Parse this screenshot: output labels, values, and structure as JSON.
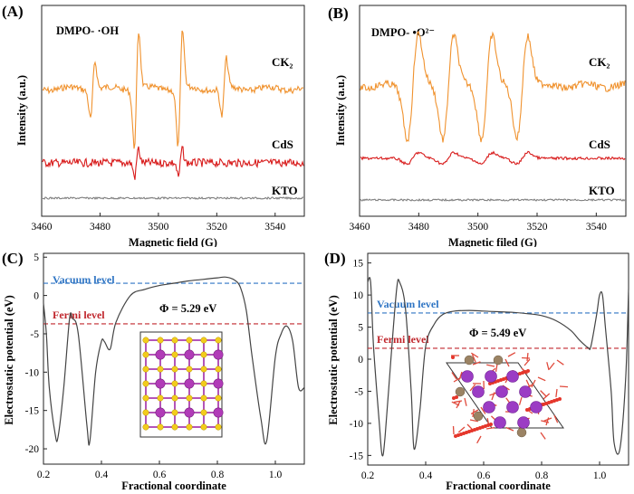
{
  "figure": {
    "panels": [
      {
        "id": "A",
        "label": "(A)",
        "annotation": "DMPO- ·OH",
        "xlabel": "Magnetic field (G)",
        "ylabel": "Intensity (a.u.)",
        "xticks": [
          "3460",
          "3480",
          "3500",
          "3520",
          "3540"
        ],
        "series_labels": [
          "CK₂",
          "CdS",
          "KTO"
        ]
      },
      {
        "id": "B",
        "label": "(B)",
        "annotation": "DMPO- •O²⁻",
        "xlabel": "Magnetic filed (G)",
        "ylabel": "Intensity (a.u.)",
        "xticks": [
          "3460",
          "3480",
          "3500",
          "3520",
          "3540"
        ],
        "series_labels": [
          "CK₂",
          "CdS",
          "KTO"
        ]
      },
      {
        "id": "C",
        "label": "(C)",
        "xlabel": "Fractional coordinate",
        "ylabel": "Electrostatic potential (eV)",
        "xticks": [
          "0.2",
          "0.4",
          "0.6",
          "0.8",
          "1.0"
        ],
        "yticks": [
          "5",
          "0",
          "-5",
          "-10",
          "-15",
          "-20"
        ],
        "vacuum_label": "Vacuum level",
        "fermi_label": "Fermi level",
        "phi_label": "Φ = 5.29 eV"
      },
      {
        "id": "D",
        "label": "(D)",
        "xlabel": "Fractional coordinate",
        "ylabel": "Electrostatic potential (eV)",
        "xticks": [
          "0.2",
          "0.4",
          "0.6",
          "0.8",
          "1.0"
        ],
        "yticks": [
          "15",
          "10",
          "5",
          "0",
          "-5",
          "-10",
          "-15"
        ],
        "vacuum_label": "Vacuum level",
        "fermi_label": "Fermi level",
        "phi_label": "Φ = 5.49 eV"
      }
    ]
  },
  "colors": {
    "ck2": "#f0922e",
    "cds": "#d81b1b",
    "kto": "#7f7f7f",
    "vacuum": "#2f75c4",
    "fermi": "#c0272d",
    "potential": "#444444"
  },
  "chart_data": [
    {
      "type": "line",
      "panel": "A",
      "xlim": [
        3460,
        3550
      ],
      "x_axis": "Magnetic field (G)",
      "y_axis": "Intensity (a.u.)",
      "series": [
        {
          "name": "CK₂",
          "hyperfine_lines_G": [
            3477.5,
            3492.5,
            3507.5,
            3522.5
          ],
          "relative_amplitude": [
            1,
            2,
            2,
            1
          ]
        },
        {
          "name": "CdS",
          "hyperfine_lines_G": [
            3492.5,
            3507.5
          ],
          "relative_amplitude": [
            1,
            1
          ]
        },
        {
          "name": "KTO",
          "hyperfine_lines_G": [],
          "relative_amplitude": []
        }
      ]
    },
    {
      "type": "line",
      "panel": "B",
      "xlim": [
        3460,
        3550
      ],
      "x_axis": "Magnetic filed (G)",
      "y_axis": "Intensity (a.u.)",
      "series": [
        {
          "name": "CK₂",
          "hyperfine_lines_G": [
            3478,
            3490,
            3503,
            3515
          ],
          "relative_amplitude": [
            1,
            1,
            1,
            1
          ]
        },
        {
          "name": "CdS",
          "hyperfine_lines_G": [
            3478,
            3490,
            3503,
            3515
          ],
          "relative_amplitude": [
            0.25,
            0.25,
            0.25,
            0.25
          ]
        },
        {
          "name": "KTO",
          "hyperfine_lines_G": [],
          "relative_amplitude": []
        }
      ]
    },
    {
      "type": "line",
      "panel": "C",
      "xlim": [
        0.2,
        1.1
      ],
      "ylim": [
        -22,
        5
      ],
      "vacuum_level_eV": 1.6,
      "fermi_level_eV": -3.7,
      "work_function_eV": 5.29,
      "series": [
        {
          "name": "Electrostatic potential",
          "x": [
            0.2,
            0.21,
            0.22,
            0.24,
            0.25,
            0.27,
            0.29,
            0.3,
            0.32,
            0.35,
            0.36,
            0.38,
            0.4,
            0.41,
            0.43,
            0.45,
            0.5,
            0.55,
            0.6,
            0.65,
            0.7,
            0.75,
            0.8,
            0.83,
            0.86,
            0.88,
            0.9,
            0.92,
            0.95,
            0.97,
            1.0,
            1.02,
            1.04,
            1.06,
            1.08,
            1.1
          ],
          "y": [
            -1,
            -5,
            -12,
            -18,
            -18.5,
            -12,
            -3,
            -3,
            -5,
            -17,
            -19,
            -10,
            -6,
            -6,
            -7,
            -3.5,
            0,
            0.8,
            1.3,
            1.6,
            1.9,
            2.1,
            2.3,
            2.4,
            2.0,
            1.0,
            -2,
            -8,
            -16,
            -19,
            -8,
            -5,
            -4,
            -6,
            -12,
            -12
          ]
        }
      ]
    },
    {
      "type": "line",
      "panel": "D",
      "xlim": [
        0.2,
        1.1
      ],
      "ylim": [
        -16,
        16
      ],
      "vacuum_level_eV": 7.2,
      "fermi_level_eV": 1.7,
      "work_function_eV": 5.49,
      "series": [
        {
          "name": "Electrostatic potential",
          "x": [
            0.2,
            0.21,
            0.22,
            0.24,
            0.25,
            0.26,
            0.28,
            0.3,
            0.31,
            0.33,
            0.35,
            0.36,
            0.38,
            0.4,
            0.43,
            0.46,
            0.5,
            0.55,
            0.6,
            0.65,
            0.7,
            0.75,
            0.8,
            0.85,
            0.9,
            0.93,
            0.96,
            0.97,
            0.99,
            1.0,
            1.01,
            1.02,
            1.04,
            1.05,
            1.07,
            1.09,
            1.1
          ],
          "y": [
            12,
            12,
            2,
            -10,
            -15,
            -12,
            0,
            11,
            12,
            8,
            -5,
            -14,
            -8,
            2,
            5.5,
            7,
            7.5,
            7.6,
            7.5,
            7.4,
            7.3,
            7.1,
            6.8,
            6,
            4.5,
            3,
            1.8,
            2,
            7,
            10,
            10,
            5,
            -5,
            -13,
            -14,
            -3,
            11
          ]
        }
      ]
    }
  ]
}
